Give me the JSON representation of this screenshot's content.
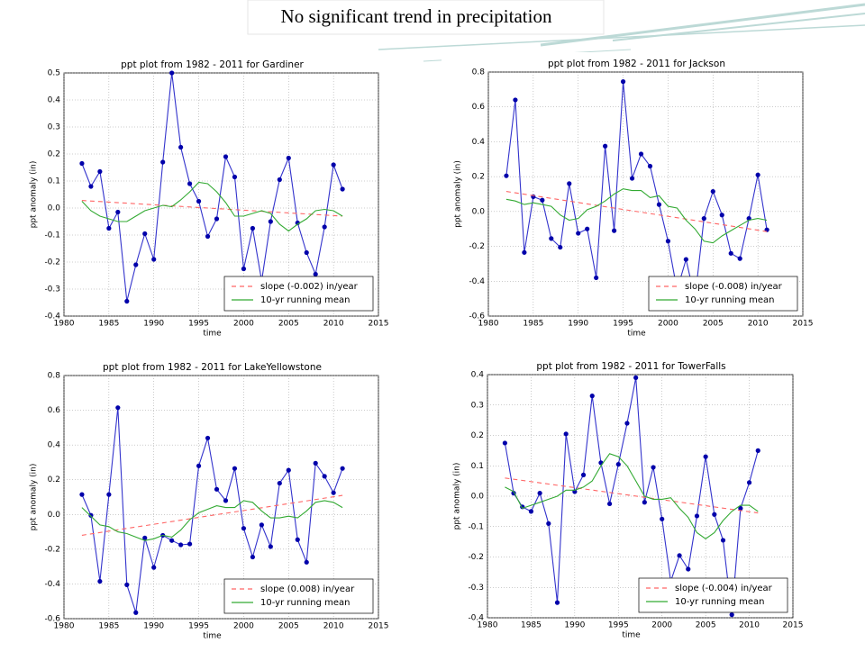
{
  "title": "No significant trend in precipitation",
  "chart_data": [
    {
      "type": "line",
      "title": "ppt plot from 1982 - 2011 for Gardiner",
      "xlabel": "time",
      "ylabel": "ppt anomaly (in)",
      "x": [
        1982,
        1983,
        1984,
        1985,
        1986,
        1987,
        1988,
        1989,
        1990,
        1991,
        1992,
        1993,
        1994,
        1995,
        1996,
        1997,
        1998,
        1999,
        2000,
        2001,
        2002,
        2003,
        2004,
        2005,
        2006,
        2007,
        2008,
        2009,
        2010,
        2011
      ],
      "series": [
        {
          "color": "#3333cc",
          "style": "solid",
          "marker": true,
          "values": [
            0.165,
            0.08,
            0.135,
            -0.075,
            -0.015,
            -0.345,
            -0.21,
            -0.095,
            -0.19,
            0.17,
            0.5,
            0.225,
            0.09,
            0.025,
            -0.105,
            -0.04,
            0.19,
            0.115,
            -0.225,
            -0.075,
            -0.27,
            -0.05,
            0.105,
            0.185,
            -0.055,
            -0.165,
            -0.245,
            -0.07,
            0.16,
            0.07
          ]
        },
        {
          "name": "slope (-0.002) in/year",
          "color": "#ff6666",
          "style": "dashed",
          "marker": false,
          "x": [
            1982,
            2011
          ],
          "values": [
            0.028,
            -0.03
          ]
        },
        {
          "name": "10-yr running mean",
          "color": "#33aa33",
          "style": "solid",
          "marker": false,
          "values": [
            0.025,
            -0.01,
            -0.03,
            -0.04,
            -0.05,
            -0.05,
            -0.03,
            -0.01,
            0.0,
            0.01,
            0.005,
            0.03,
            0.06,
            0.095,
            0.09,
            0.06,
            0.02,
            -0.03,
            -0.03,
            -0.02,
            -0.01,
            -0.02,
            -0.06,
            -0.085,
            -0.06,
            -0.04,
            -0.01,
            -0.005,
            -0.01,
            -0.03
          ]
        }
      ],
      "xlim": [
        1980,
        2015
      ],
      "xticks": [
        1980,
        1985,
        1990,
        1995,
        2000,
        2005,
        2010,
        2015
      ],
      "ylim": [
        -0.4,
        0.5
      ],
      "yticks": [
        -0.4,
        -0.3,
        -0.2,
        -0.1,
        {
          "value": 0,
          "label": "0.0"
        },
        0.1,
        0.2,
        0.3,
        0.4,
        0.5
      ],
      "grid": true,
      "legend": "lower right"
    },
    {
      "type": "line",
      "title": "ppt plot from 1982 - 2011 for Jackson",
      "xlabel": "time",
      "ylabel": "ppt anomaly (in)",
      "x": [
        1982,
        1983,
        1984,
        1985,
        1986,
        1987,
        1988,
        1989,
        1990,
        1991,
        1992,
        1993,
        1994,
        1995,
        1996,
        1997,
        1998,
        1999,
        2000,
        2001,
        2002,
        2003,
        2004,
        2005,
        2006,
        2007,
        2008,
        2009,
        2010,
        2011
      ],
      "series": [
        {
          "color": "#3333cc",
          "style": "solid",
          "marker": true,
          "values": [
            0.205,
            0.64,
            -0.235,
            0.085,
            0.065,
            -0.155,
            -0.205,
            0.16,
            -0.125,
            -0.1,
            -0.38,
            0.375,
            -0.11,
            0.745,
            0.19,
            0.33,
            0.26,
            0.04,
            -0.17,
            -0.45,
            -0.275,
            -0.5,
            -0.04,
            0.115,
            -0.02,
            -0.24,
            -0.27,
            -0.04,
            0.21,
            -0.105
          ]
        },
        {
          "name": "slope (-0.008) in/year",
          "color": "#ff6666",
          "style": "dashed",
          "marker": false,
          "x": [
            1982,
            2011
          ],
          "values": [
            0.115,
            -0.115
          ]
        },
        {
          "name": "10-yr running mean",
          "color": "#33aa33",
          "style": "solid",
          "marker": false,
          "values": [
            0.07,
            0.06,
            0.04,
            0.05,
            0.04,
            0.03,
            -0.02,
            -0.05,
            -0.04,
            0.01,
            0.03,
            0.06,
            0.1,
            0.13,
            0.12,
            0.12,
            0.08,
            0.09,
            0.03,
            0.02,
            -0.05,
            -0.1,
            -0.17,
            -0.18,
            -0.14,
            -0.11,
            -0.08,
            -0.05,
            -0.04,
            -0.05
          ]
        }
      ],
      "xlim": [
        1980,
        2015
      ],
      "xticks": [
        1980,
        1985,
        1990,
        1995,
        2000,
        2005,
        2010,
        2015
      ],
      "ylim": [
        -0.6,
        0.8
      ],
      "yticks": [
        -0.6,
        -0.4,
        -0.2,
        {
          "value": 0,
          "label": "0.0"
        },
        0.2,
        0.4,
        0.6,
        0.8
      ],
      "grid": true,
      "legend": "lower right"
    },
    {
      "type": "line",
      "title": "ppt plot from 1982 - 2011 for LakeYellowstone",
      "xlabel": "time",
      "ylabel": "ppt anomaly (in)",
      "x": [
        1982,
        1983,
        1984,
        1985,
        1986,
        1987,
        1988,
        1989,
        1990,
        1991,
        1992,
        1993,
        1994,
        1995,
        1996,
        1997,
        1998,
        1999,
        2000,
        2001,
        2002,
        2003,
        2004,
        2005,
        2006,
        2007,
        2008,
        2009,
        2010,
        2011
      ],
      "series": [
        {
          "color": "#3333cc",
          "style": "solid",
          "marker": true,
          "values": [
            0.115,
            -0.005,
            -0.385,
            0.115,
            0.615,
            -0.405,
            -0.565,
            -0.135,
            -0.305,
            -0.12,
            -0.15,
            -0.175,
            -0.17,
            0.28,
            0.44,
            0.145,
            0.08,
            0.265,
            -0.08,
            -0.245,
            -0.06,
            -0.185,
            0.18,
            0.255,
            -0.145,
            -0.275,
            0.295,
            0.22,
            0.125,
            0.265
          ]
        },
        {
          "name": "slope (0.008) in/year",
          "color": "#ff6666",
          "style": "dashed",
          "marker": false,
          "x": [
            1982,
            2011
          ],
          "values": [
            -0.12,
            0.11
          ]
        },
        {
          "name": "10-yr running mean",
          "color": "#33aa33",
          "style": "solid",
          "marker": false,
          "values": [
            0.04,
            -0.01,
            -0.06,
            -0.07,
            -0.1,
            -0.11,
            -0.13,
            -0.15,
            -0.14,
            -0.12,
            -0.13,
            -0.09,
            -0.03,
            0.01,
            0.03,
            0.05,
            0.04,
            0.04,
            0.08,
            0.07,
            0.02,
            -0.02,
            -0.02,
            -0.01,
            -0.02,
            0.02,
            0.07,
            0.08,
            0.07,
            0.04
          ]
        }
      ],
      "xlim": [
        1980,
        2015
      ],
      "xticks": [
        1980,
        1985,
        1990,
        1995,
        2000,
        2005,
        2010,
        2015
      ],
      "ylim": [
        -0.6,
        0.8
      ],
      "yticks": [
        -0.6,
        -0.4,
        -0.2,
        {
          "value": 0,
          "label": "0.0"
        },
        0.2,
        0.4,
        0.6,
        0.8
      ],
      "grid": true,
      "legend": "lower right"
    },
    {
      "type": "line",
      "title": "ppt plot from 1982 - 2011 for TowerFalls",
      "xlabel": "time",
      "ylabel": "ppt anomaly (in)",
      "x": [
        1982,
        1983,
        1984,
        1985,
        1986,
        1987,
        1988,
        1989,
        1990,
        1991,
        1992,
        1993,
        1994,
        1995,
        1996,
        1997,
        1998,
        1999,
        2000,
        2001,
        2002,
        2003,
        2004,
        2005,
        2006,
        2007,
        2008,
        2009,
        2010,
        2011
      ],
      "series": [
        {
          "color": "#3333cc",
          "style": "solid",
          "marker": true,
          "values": [
            0.175,
            0.01,
            -0.035,
            -0.05,
            0.01,
            -0.09,
            -0.35,
            0.205,
            0.015,
            0.07,
            0.33,
            0.11,
            -0.025,
            0.105,
            0.24,
            0.39,
            -0.02,
            0.095,
            -0.075,
            -0.28,
            -0.195,
            -0.24,
            -0.065,
            0.13,
            -0.06,
            -0.145,
            -0.39,
            -0.04,
            0.045,
            0.15
          ]
        },
        {
          "name": "slope (-0.004) in/year",
          "color": "#ff6666",
          "style": "dashed",
          "marker": false,
          "x": [
            1982,
            2011
          ],
          "values": [
            0.06,
            -0.055
          ]
        },
        {
          "name": "10-yr running mean",
          "color": "#33aa33",
          "style": "solid",
          "marker": false,
          "values": [
            0.03,
            0.015,
            -0.04,
            -0.03,
            -0.02,
            -0.01,
            0.0,
            0.02,
            0.02,
            0.03,
            0.05,
            0.1,
            0.14,
            0.13,
            0.1,
            0.05,
            0.0,
            -0.01,
            -0.01,
            -0.005,
            -0.04,
            -0.07,
            -0.12,
            -0.14,
            -0.12,
            -0.08,
            -0.05,
            -0.03,
            -0.03,
            -0.05
          ]
        }
      ],
      "xlim": [
        1980,
        2015
      ],
      "xticks": [
        1980,
        1985,
        1990,
        1995,
        2000,
        2005,
        2010,
        2015
      ],
      "ylim": [
        -0.4,
        0.4
      ],
      "yticks": [
        -0.4,
        -0.3,
        -0.2,
        -0.1,
        {
          "value": 0,
          "label": "0.0"
        },
        0.1,
        0.2,
        0.3,
        0.4
      ],
      "grid": true,
      "legend": "lower right"
    }
  ]
}
